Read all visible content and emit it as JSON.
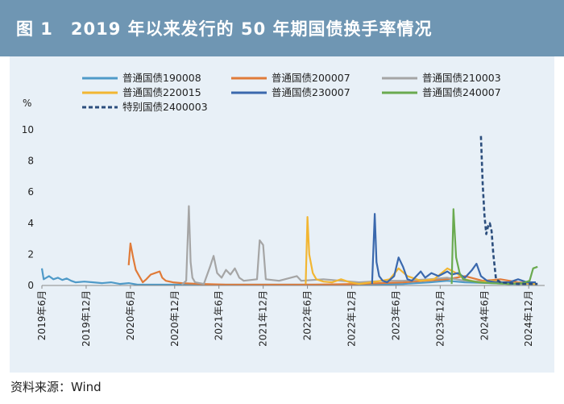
{
  "figure": {
    "title": "图 1　2019 年以来发行的 50 年期国债换手率情况",
    "source": "资料来源：Wind"
  },
  "chart_data": {
    "type": "line",
    "title": "2019 年以来发行的 50 年期国债换手率情况",
    "ylabel": "%",
    "xlabel": "",
    "ylim": [
      0,
      10
    ],
    "yticks": [
      0,
      2,
      4,
      6,
      8,
      10
    ],
    "xrange": [
      2019.42,
      2025.1
    ],
    "xticks": [
      {
        "label": "2019年6月",
        "t": 2019.42
      },
      {
        "label": "2019年12月",
        "t": 2019.92
      },
      {
        "label": "2020年6月",
        "t": 2020.42
      },
      {
        "label": "2020年12月",
        "t": 2020.92
      },
      {
        "label": "2021年6月",
        "t": 2021.42
      },
      {
        "label": "2021年12月",
        "t": 2021.92
      },
      {
        "label": "2022年6月",
        "t": 2022.42
      },
      {
        "label": "2022年12月",
        "t": 2022.92
      },
      {
        "label": "2023年6月",
        "t": 2023.42
      },
      {
        "label": "2023年12月",
        "t": 2023.92
      },
      {
        "label": "2024年6月",
        "t": 2024.42
      },
      {
        "label": "2024年12月",
        "t": 2024.92
      }
    ],
    "x_unit": "decimal year",
    "series": [
      {
        "name": "普通国债190008",
        "color": "#4f9ac8",
        "dash": false,
        "points": [
          [
            2019.42,
            1.1
          ],
          [
            2019.44,
            0.4
          ],
          [
            2019.5,
            0.6
          ],
          [
            2019.55,
            0.4
          ],
          [
            2019.6,
            0.5
          ],
          [
            2019.65,
            0.35
          ],
          [
            2019.7,
            0.45
          ],
          [
            2019.75,
            0.3
          ],
          [
            2019.8,
            0.2
          ],
          [
            2019.9,
            0.25
          ],
          [
            2020.0,
            0.2
          ],
          [
            2020.1,
            0.15
          ],
          [
            2020.2,
            0.2
          ],
          [
            2020.3,
            0.1
          ],
          [
            2020.4,
            0.15
          ],
          [
            2020.5,
            0.05
          ],
          [
            2020.7,
            0.05
          ],
          [
            2021.0,
            0.05
          ],
          [
            2022.0,
            0.05
          ],
          [
            2023.0,
            0.05
          ],
          [
            2023.5,
            0.1
          ],
          [
            2023.8,
            0.2
          ],
          [
            2024.0,
            0.3
          ],
          [
            2024.2,
            0.2
          ],
          [
            2024.5,
            0.15
          ],
          [
            2024.7,
            0.1
          ],
          [
            2025.0,
            0.1
          ]
        ]
      },
      {
        "name": "普通国债200007",
        "color": "#e07b39",
        "dash": false,
        "points": [
          [
            2020.4,
            1.3
          ],
          [
            2020.42,
            2.7
          ],
          [
            2020.45,
            1.8
          ],
          [
            2020.48,
            1.0
          ],
          [
            2020.52,
            0.6
          ],
          [
            2020.56,
            0.2
          ],
          [
            2020.6,
            0.4
          ],
          [
            2020.65,
            0.7
          ],
          [
            2020.7,
            0.8
          ],
          [
            2020.75,
            0.9
          ],
          [
            2020.78,
            0.5
          ],
          [
            2020.82,
            0.3
          ],
          [
            2020.9,
            0.2
          ],
          [
            2021.0,
            0.15
          ],
          [
            2021.2,
            0.1
          ],
          [
            2021.5,
            0.05
          ],
          [
            2022.0,
            0.05
          ],
          [
            2022.5,
            0.05
          ],
          [
            2023.0,
            0.1
          ],
          [
            2023.5,
            0.2
          ],
          [
            2024.0,
            0.4
          ],
          [
            2024.2,
            0.6
          ],
          [
            2024.4,
            0.3
          ],
          [
            2024.6,
            0.4
          ],
          [
            2024.8,
            0.2
          ],
          [
            2025.0,
            0.1
          ]
        ]
      },
      {
        "name": "普通国债210003",
        "color": "#a5a5a5",
        "dash": false,
        "points": [
          [
            2021.0,
            0.05
          ],
          [
            2021.05,
            0.3
          ],
          [
            2021.08,
            5.1
          ],
          [
            2021.1,
            1.5
          ],
          [
            2021.12,
            0.5
          ],
          [
            2021.15,
            0.2
          ],
          [
            2021.25,
            0.1
          ],
          [
            2021.32,
            1.2
          ],
          [
            2021.36,
            1.9
          ],
          [
            2021.4,
            0.8
          ],
          [
            2021.45,
            0.5
          ],
          [
            2021.5,
            1.0
          ],
          [
            2021.55,
            0.7
          ],
          [
            2021.6,
            1.1
          ],
          [
            2021.65,
            0.5
          ],
          [
            2021.7,
            0.3
          ],
          [
            2021.85,
            0.4
          ],
          [
            2021.88,
            2.9
          ],
          [
            2021.92,
            2.6
          ],
          [
            2021.95,
            0.4
          ],
          [
            2022.1,
            0.3
          ],
          [
            2022.3,
            0.6
          ],
          [
            2022.35,
            0.3
          ],
          [
            2022.6,
            0.4
          ],
          [
            2022.8,
            0.3
          ],
          [
            2023.0,
            0.2
          ],
          [
            2023.3,
            0.3
          ],
          [
            2023.5,
            0.3
          ],
          [
            2023.8,
            0.4
          ],
          [
            2024.0,
            0.5
          ],
          [
            2024.2,
            0.3
          ],
          [
            2024.5,
            0.2
          ],
          [
            2025.0,
            0.1
          ]
        ]
      },
      {
        "name": "普通国债220015",
        "color": "#f2b632",
        "dash": false,
        "points": [
          [
            2022.4,
            0.1
          ],
          [
            2022.42,
            4.4
          ],
          [
            2022.44,
            2.0
          ],
          [
            2022.48,
            0.8
          ],
          [
            2022.52,
            0.4
          ],
          [
            2022.6,
            0.25
          ],
          [
            2022.7,
            0.2
          ],
          [
            2022.8,
            0.4
          ],
          [
            2022.9,
            0.2
          ],
          [
            2023.0,
            0.1
          ],
          [
            2023.2,
            0.25
          ],
          [
            2023.35,
            0.4
          ],
          [
            2023.45,
            1.1
          ],
          [
            2023.55,
            0.6
          ],
          [
            2023.7,
            0.3
          ],
          [
            2023.85,
            0.4
          ],
          [
            2024.0,
            1.1
          ],
          [
            2024.1,
            0.8
          ],
          [
            2024.2,
            0.4
          ],
          [
            2024.35,
            0.2
          ],
          [
            2024.5,
            0.3
          ],
          [
            2024.7,
            0.15
          ],
          [
            2025.0,
            0.1
          ]
        ]
      },
      {
        "name": "普通国债230007",
        "color": "#3a68ad",
        "dash": false,
        "points": [
          [
            2023.15,
            0.1
          ],
          [
            2023.18,
            4.6
          ],
          [
            2023.2,
            1.5
          ],
          [
            2023.23,
            0.6
          ],
          [
            2023.27,
            0.3
          ],
          [
            2023.32,
            0.2
          ],
          [
            2023.4,
            0.6
          ],
          [
            2023.45,
            1.8
          ],
          [
            2023.5,
            1.2
          ],
          [
            2023.55,
            0.4
          ],
          [
            2023.6,
            0.3
          ],
          [
            2023.7,
            0.9
          ],
          [
            2023.75,
            0.5
          ],
          [
            2023.82,
            0.8
          ],
          [
            2023.9,
            0.6
          ],
          [
            2024.0,
            0.9
          ],
          [
            2024.05,
            0.7
          ],
          [
            2024.12,
            0.8
          ],
          [
            2024.2,
            0.5
          ],
          [
            2024.28,
            1.0
          ],
          [
            2024.33,
            1.4
          ],
          [
            2024.38,
            0.6
          ],
          [
            2024.45,
            0.3
          ],
          [
            2024.55,
            0.2
          ],
          [
            2024.7,
            0.2
          ],
          [
            2024.8,
            0.4
          ],
          [
            2024.9,
            0.2
          ],
          [
            2025.0,
            0.2
          ]
        ]
      },
      {
        "name": "普通国债240007",
        "color": "#6aaa4f",
        "dash": false,
        "points": [
          [
            2024.05,
            0.1
          ],
          [
            2024.07,
            4.9
          ],
          [
            2024.1,
            1.8
          ],
          [
            2024.14,
            0.8
          ],
          [
            2024.18,
            0.4
          ],
          [
            2024.25,
            0.3
          ],
          [
            2024.35,
            0.2
          ],
          [
            2024.5,
            0.15
          ],
          [
            2024.7,
            0.1
          ],
          [
            2024.85,
            0.15
          ],
          [
            2024.93,
            0.3
          ],
          [
            2024.97,
            1.1
          ],
          [
            2025.02,
            1.2
          ]
        ]
      },
      {
        "name": "特别国债2400003",
        "color": "#2c4e7d",
        "dash": true,
        "points": [
          [
            2024.38,
            9.6
          ],
          [
            2024.4,
            6.5
          ],
          [
            2024.42,
            4.5
          ],
          [
            2024.44,
            3.3
          ],
          [
            2024.46,
            3.8
          ],
          [
            2024.48,
            4.0
          ],
          [
            2024.5,
            3.5
          ],
          [
            2024.52,
            2.0
          ],
          [
            2024.55,
            0.4
          ],
          [
            2024.6,
            0.2
          ],
          [
            2024.7,
            0.15
          ],
          [
            2024.8,
            0.1
          ],
          [
            2024.95,
            0.1
          ],
          [
            2025.02,
            0.1
          ]
        ]
      }
    ]
  }
}
